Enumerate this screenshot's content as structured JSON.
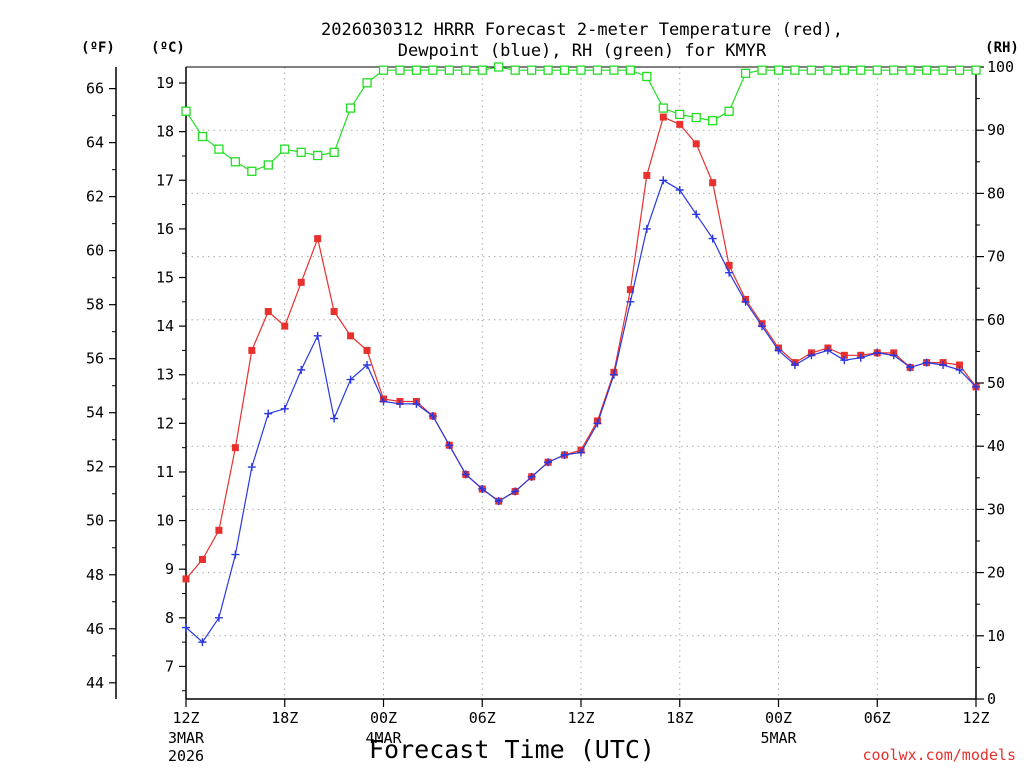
{
  "chart_data": {
    "type": "line",
    "title_line1": "2026030312 HRRR Forecast 2-meter Temperature (red),",
    "title_line2": "Dewpoint (blue), RH (green) for KMYR",
    "xlabel": "Forecast Time (UTC)",
    "credit": "coolwx.com/models",
    "unit_f": "(ºF)",
    "unit_c": "(ºC)",
    "unit_rh": "(RH)",
    "x_start_hour": 0,
    "x_end_hour": 48,
    "x_ticks": [
      {
        "hour": 0,
        "label": "12Z",
        "sub1": "3MAR",
        "sub2": "2026"
      },
      {
        "hour": 6,
        "label": "18Z",
        "sub1": "",
        "sub2": ""
      },
      {
        "hour": 12,
        "label": "00Z",
        "sub1": "4MAR",
        "sub2": ""
      },
      {
        "hour": 18,
        "label": "06Z",
        "sub1": "",
        "sub2": ""
      },
      {
        "hour": 24,
        "label": "12Z",
        "sub1": "",
        "sub2": ""
      },
      {
        "hour": 30,
        "label": "18Z",
        "sub1": "",
        "sub2": ""
      },
      {
        "hour": 36,
        "label": "00Z",
        "sub1": "5MAR",
        "sub2": ""
      },
      {
        "hour": 42,
        "label": "06Z",
        "sub1": "",
        "sub2": ""
      },
      {
        "hour": 48,
        "label": "12Z",
        "sub1": "",
        "sub2": ""
      }
    ],
    "ylim_c": [
      6.33,
      19.33
    ],
    "ylim_rh": [
      0,
      100
    ],
    "ylim_f": [
      43.4,
      66.8
    ],
    "yticks_c": [
      "7",
      "8",
      "9",
      "10",
      "11",
      "12",
      "13",
      "14",
      "15",
      "16",
      "17",
      "18",
      "19"
    ],
    "yticks_f": [
      "44",
      "46",
      "48",
      "50",
      "52",
      "54",
      "56",
      "58",
      "60",
      "62",
      "64",
      "66"
    ],
    "yticks_rh": [
      "0",
      "10",
      "20",
      "30",
      "40",
      "50",
      "60",
      "70",
      "80",
      "90",
      "100"
    ],
    "series": [
      {
        "name": "Temperature",
        "color": "#e8302c",
        "marker": "filled-square",
        "values": [
          8.8,
          9.2,
          9.8,
          11.5,
          13.5,
          14.3,
          14.0,
          14.9,
          15.8,
          14.3,
          13.8,
          13.5,
          12.5,
          12.45,
          12.45,
          12.15,
          11.55,
          10.95,
          10.65,
          10.4,
          10.6,
          10.9,
          11.2,
          11.35,
          11.45,
          12.05,
          13.05,
          14.75,
          17.1,
          18.3,
          18.15,
          17.75,
          16.95,
          15.25,
          14.55,
          14.05,
          13.55,
          13.25,
          13.45,
          13.55,
          13.4,
          13.4,
          13.45,
          13.45,
          13.15,
          13.25,
          13.25,
          13.2,
          12.75
        ]
      },
      {
        "name": "Dewpoint",
        "color": "#2a38e0",
        "marker": "plus",
        "values": [
          7.8,
          7.5,
          8.0,
          9.3,
          11.1,
          12.2,
          12.3,
          13.1,
          13.8,
          12.1,
          12.9,
          13.2,
          12.45,
          12.4,
          12.4,
          12.15,
          11.55,
          10.95,
          10.65,
          10.4,
          10.6,
          10.9,
          11.2,
          11.35,
          11.4,
          12.0,
          13.0,
          14.5,
          16.0,
          17.0,
          16.8,
          16.3,
          15.8,
          15.1,
          14.5,
          14.0,
          13.5,
          13.2,
          13.4,
          13.5,
          13.3,
          13.35,
          13.45,
          13.4,
          13.15,
          13.25,
          13.2,
          13.1,
          12.75
        ]
      },
      {
        "name": "RH",
        "color": "#22dd22",
        "marker": "open-square",
        "values": [
          93,
          89,
          87,
          85,
          83.5,
          84.5,
          87,
          86.5,
          86,
          86.5,
          93.5,
          97.5,
          99.5,
          99.5,
          99.5,
          99.5,
          99.5,
          99.5,
          99.5,
          100,
          99.5,
          99.5,
          99.5,
          99.5,
          99.5,
          99.5,
          99.5,
          99.5,
          98.5,
          93.5,
          92.5,
          92,
          91.5,
          93,
          99,
          99.5,
          99.5,
          99.5,
          99.5,
          99.5,
          99.5,
          99.5,
          99.5,
          99.5,
          99.5,
          99.5,
          99.5,
          99.5,
          99.5
        ]
      }
    ]
  }
}
